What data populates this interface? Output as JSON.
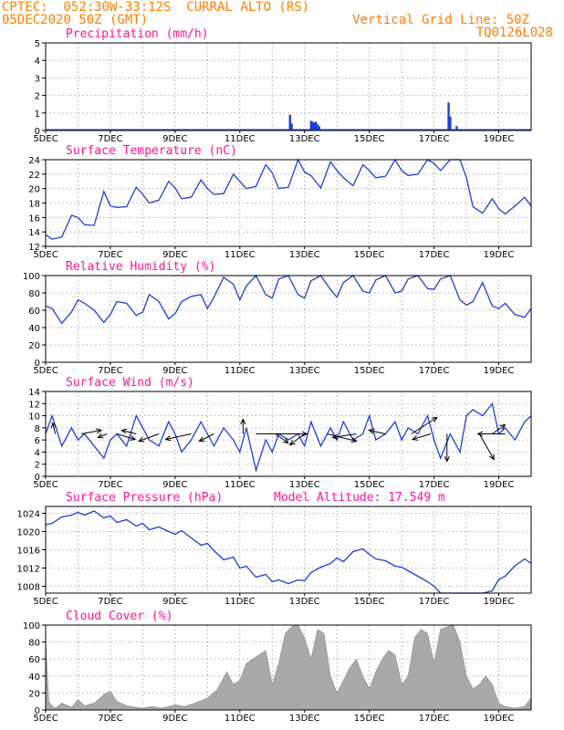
{
  "header": {
    "line1": "CPTEC:  052:30W-33:12S  CURRAL ALTO (RS)",
    "line2": "05DEC2020 50Z (GMT)",
    "grid_note": "Vertical Grid Line: 50Z",
    "code": "TQ0126L028"
  },
  "colors": {
    "header": "#ff7f00",
    "panel_title": "#ff1493",
    "line": "#1f3fd6",
    "precip_bar": "#1f3fd6",
    "cloud_fill": "#a9a9a9",
    "grid": "#9a9a9a"
  },
  "x_axis": {
    "ticks": [
      {
        "day": 5,
        "label": "5DEC"
      },
      {
        "day": 7,
        "label": "7DEC"
      },
      {
        "day": 9,
        "label": "9DEC"
      },
      {
        "day": 11,
        "label": "11DEC"
      },
      {
        "day": 13,
        "label": "13DEC"
      },
      {
        "day": 15,
        "label": "15DEC"
      },
      {
        "day": 17,
        "label": "17DEC"
      },
      {
        "day": 19,
        "label": "19DEC"
      }
    ],
    "range": [
      5,
      20
    ]
  },
  "chart_data": [
    {
      "type": "bar",
      "title": "Precipitation (mm/h)",
      "ylim": [
        0,
        5
      ],
      "yticks": [
        0,
        1,
        2,
        3,
        4,
        5
      ],
      "x": [
        12.55,
        12.6,
        13.2,
        13.25,
        13.3,
        13.35,
        13.4,
        13.45,
        17.45,
        17.5,
        17.7
      ],
      "values": [
        0.9,
        0.4,
        0.55,
        0.5,
        0.45,
        0.5,
        0.35,
        0.25,
        1.6,
        0.8,
        0.25
      ]
    },
    {
      "type": "line",
      "title": "Surface Temperature (nC)",
      "ylim": [
        12,
        24
      ],
      "yticks": [
        12,
        14,
        16,
        18,
        20,
        22,
        24
      ],
      "x": [
        5.0,
        5.2,
        5.5,
        5.8,
        6.0,
        6.2,
        6.5,
        6.8,
        7.0,
        7.2,
        7.5,
        7.8,
        8.0,
        8.2,
        8.5,
        8.8,
        9.0,
        9.2,
        9.5,
        9.8,
        10.0,
        10.2,
        10.5,
        10.8,
        11.0,
        11.2,
        11.5,
        11.8,
        12.0,
        12.2,
        12.5,
        12.8,
        13.0,
        13.2,
        13.5,
        13.8,
        14.0,
        14.2,
        14.5,
        14.8,
        15.0,
        15.2,
        15.5,
        15.8,
        16.0,
        16.2,
        16.5,
        16.8,
        17.0,
        17.2,
        17.5,
        17.8,
        18.0,
        18.2,
        18.5,
        18.8,
        19.0,
        19.2,
        19.5,
        19.8,
        20.0
      ],
      "values": [
        13.6,
        13.0,
        13.3,
        16.3,
        16.0,
        15.0,
        14.9,
        19.6,
        17.6,
        17.4,
        17.5,
        20.2,
        19.2,
        18.0,
        18.4,
        21.0,
        20.1,
        18.6,
        18.8,
        21.2,
        20.0,
        19.2,
        19.3,
        22.0,
        21.0,
        20.0,
        20.3,
        23.3,
        22.2,
        20.0,
        20.2,
        24.0,
        22.3,
        21.8,
        20.1,
        23.7,
        22.5,
        21.5,
        20.4,
        23.3,
        22.5,
        21.5,
        21.7,
        24.0,
        22.5,
        21.8,
        22.0,
        24.0,
        23.5,
        22.5,
        24.0,
        24.0,
        21.5,
        17.5,
        16.6,
        18.6,
        17.2,
        16.5,
        17.6,
        18.8,
        17.6
      ]
    },
    {
      "type": "line",
      "title": "Relative Humidity (%)",
      "ylim": [
        0,
        100
      ],
      "yticks": [
        0,
        20,
        40,
        60,
        80,
        100
      ],
      "x": [
        5.0,
        5.2,
        5.5,
        5.8,
        6.0,
        6.2,
        6.5,
        6.8,
        7.0,
        7.2,
        7.5,
        7.8,
        8.0,
        8.2,
        8.5,
        8.8,
        9.0,
        9.2,
        9.5,
        9.8,
        10.0,
        10.2,
        10.5,
        10.8,
        11.0,
        11.2,
        11.5,
        11.8,
        12.0,
        12.2,
        12.5,
        12.8,
        13.0,
        13.2,
        13.5,
        13.8,
        14.0,
        14.2,
        14.5,
        14.8,
        15.0,
        15.2,
        15.5,
        15.8,
        16.0,
        16.2,
        16.5,
        16.8,
        17.0,
        17.2,
        17.5,
        17.8,
        18.0,
        18.2,
        18.5,
        18.8,
        19.0,
        19.2,
        19.5,
        19.8,
        20.0
      ],
      "values": [
        65,
        62,
        45,
        58,
        72,
        68,
        60,
        46,
        55,
        70,
        68,
        54,
        58,
        78,
        70,
        50,
        56,
        70,
        76,
        78,
        62,
        75,
        98,
        90,
        72,
        88,
        100,
        78,
        74,
        96,
        100,
        78,
        74,
        94,
        100,
        84,
        75,
        92,
        100,
        82,
        80,
        95,
        100,
        80,
        82,
        96,
        100,
        85,
        84,
        96,
        100,
        72,
        66,
        70,
        92,
        65,
        62,
        68,
        55,
        52,
        62
      ]
    },
    {
      "type": "line",
      "title": "Surface Wind (m/s)",
      "ylim": [
        0,
        14
      ],
      "yticks": [
        0,
        2,
        4,
        6,
        8,
        10,
        12,
        14
      ],
      "x": [
        5.0,
        5.2,
        5.5,
        5.8,
        6.0,
        6.2,
        6.5,
        6.8,
        7.0,
        7.2,
        7.5,
        7.8,
        8.0,
        8.2,
        8.5,
        8.8,
        9.0,
        9.2,
        9.5,
        9.8,
        10.0,
        10.2,
        10.5,
        10.8,
        11.0,
        11.2,
        11.5,
        11.8,
        12.0,
        12.2,
        12.5,
        12.8,
        13.0,
        13.2,
        13.5,
        13.8,
        14.0,
        14.2,
        14.5,
        14.8,
        15.0,
        15.2,
        15.5,
        15.8,
        16.0,
        16.2,
        16.5,
        16.8,
        17.0,
        17.2,
        17.5,
        17.8,
        18.0,
        18.2,
        18.5,
        18.8,
        19.0,
        19.2,
        19.5,
        19.8,
        20.0
      ],
      "values": [
        7,
        10,
        5,
        8,
        6,
        7,
        5,
        3,
        6,
        7,
        5,
        10,
        8,
        6,
        5,
        9,
        7,
        4,
        6,
        9,
        7,
        5,
        8,
        6,
        4,
        8,
        1,
        6,
        4,
        7,
        6,
        7,
        5,
        9,
        5,
        8,
        6,
        9,
        6,
        7,
        10,
        6,
        7,
        9,
        6,
        8,
        7,
        10,
        6,
        3,
        7,
        4,
        10,
        11,
        10,
        12,
        7,
        8,
        6,
        9,
        10
      ],
      "wind_vectors": [
        {
          "x": 5.3,
          "dx": -3,
          "dy": 12
        },
        {
          "x": 6.1,
          "dx": 22,
          "dy": 4
        },
        {
          "x": 6.9,
          "dx": -10,
          "dy": -4
        },
        {
          "x": 7.2,
          "dx": 20,
          "dy": -6
        },
        {
          "x": 7.8,
          "dx": -16,
          "dy": 4
        },
        {
          "x": 8.5,
          "dx": -22,
          "dy": -8
        },
        {
          "x": 9.5,
          "dx": -28,
          "dy": -6
        },
        {
          "x": 10.2,
          "dx": -16,
          "dy": -8
        },
        {
          "x": 11.1,
          "dx": 0,
          "dy": 16
        },
        {
          "x": 11.5,
          "dx": 56,
          "dy": 0
        },
        {
          "x": 12.1,
          "dx": 14,
          "dy": -10
        },
        {
          "x": 13.0,
          "dx": -16,
          "dy": -12
        },
        {
          "x": 13.7,
          "dx": 32,
          "dy": -8
        },
        {
          "x": 14.6,
          "dx": -26,
          "dy": -4
        },
        {
          "x": 15.5,
          "dx": -18,
          "dy": 4
        },
        {
          "x": 16.3,
          "dx": 28,
          "dy": 18
        },
        {
          "x": 16.9,
          "dx": -20,
          "dy": -6
        },
        {
          "x": 17.4,
          "dx": 0,
          "dy": -30
        },
        {
          "x": 18.4,
          "dx": 16,
          "dy": -28
        },
        {
          "x": 18.8,
          "dx": 14,
          "dy": 10
        },
        {
          "x": 19.2,
          "dx": -30,
          "dy": 0
        }
      ]
    },
    {
      "type": "line",
      "title": "Surface Pressure (hPa)",
      "annotation": "Model Altitude: 17.549  m",
      "ylim": [
        1006.5,
        1025.5
      ],
      "yticks": [
        1008,
        1012,
        1016,
        1020,
        1024
      ],
      "x": [
        5.0,
        5.2,
        5.5,
        5.8,
        6.0,
        6.2,
        6.5,
        6.8,
        7.0,
        7.2,
        7.5,
        7.8,
        8.0,
        8.2,
        8.5,
        8.8,
        9.0,
        9.2,
        9.5,
        9.8,
        10.0,
        10.2,
        10.5,
        10.8,
        11.0,
        11.2,
        11.5,
        11.8,
        12.0,
        12.2,
        12.5,
        12.8,
        13.0,
        13.2,
        13.5,
        13.8,
        14.0,
        14.2,
        14.5,
        14.8,
        15.0,
        15.2,
        15.5,
        15.8,
        16.0,
        16.2,
        16.5,
        16.8,
        17.0,
        17.2,
        17.5,
        17.8,
        18.0,
        18.2,
        18.5,
        18.8,
        19.0,
        19.2,
        19.5,
        19.8,
        20.0
      ],
      "values": [
        1021.5,
        1021.8,
        1023.2,
        1023.6,
        1024.2,
        1023.6,
        1024.5,
        1023.0,
        1023.4,
        1022.0,
        1022.6,
        1021.2,
        1021.8,
        1020.4,
        1021.0,
        1020.0,
        1019.4,
        1020.2,
        1018.6,
        1017.0,
        1017.4,
        1015.8,
        1013.8,
        1014.4,
        1012.0,
        1012.4,
        1010.0,
        1010.6,
        1009.0,
        1009.4,
        1008.6,
        1009.4,
        1009.2,
        1011.0,
        1012.2,
        1013.0,
        1014.2,
        1013.4,
        1015.6,
        1016.2,
        1015.0,
        1014.0,
        1013.6,
        1012.4,
        1012.2,
        1011.4,
        1010.2,
        1009.0,
        1008.0,
        1006.5,
        1006.5,
        1006.5,
        1006.5,
        1006.5,
        1006.5,
        1007.0,
        1009.5,
        1010.2,
        1012.5,
        1014.0,
        1013.0
      ]
    },
    {
      "type": "area",
      "title": "Cloud Cover (%)",
      "ylim": [
        0,
        100
      ],
      "yticks": [
        0,
        20,
        40,
        60,
        80,
        100
      ],
      "x": [
        5.0,
        5.1,
        5.2,
        5.3,
        5.5,
        5.8,
        6.0,
        6.2,
        6.5,
        6.8,
        7.0,
        7.2,
        7.5,
        7.8,
        8.0,
        8.3,
        8.6,
        9.0,
        9.3,
        9.6,
        10.0,
        10.3,
        10.6,
        10.8,
        11.0,
        11.2,
        11.4,
        11.6,
        11.8,
        12.0,
        12.2,
        12.4,
        12.6,
        12.8,
        13.0,
        13.2,
        13.4,
        13.6,
        13.8,
        14.0,
        14.2,
        14.4,
        14.6,
        14.8,
        15.0,
        15.2,
        15.4,
        15.6,
        15.8,
        16.0,
        16.2,
        16.4,
        16.6,
        16.8,
        17.0,
        17.2,
        17.4,
        17.6,
        17.8,
        18.0,
        18.2,
        18.4,
        18.6,
        18.8,
        19.0,
        19.2,
        19.5,
        19.8,
        20.0
      ],
      "values": [
        82,
        10,
        5,
        2,
        8,
        3,
        12,
        5,
        8,
        18,
        22,
        10,
        5,
        3,
        2,
        4,
        2,
        6,
        4,
        8,
        14,
        24,
        45,
        30,
        35,
        55,
        60,
        65,
        70,
        30,
        55,
        90,
        98,
        100,
        85,
        60,
        95,
        90,
        40,
        20,
        35,
        50,
        60,
        40,
        25,
        45,
        60,
        70,
        65,
        30,
        40,
        85,
        95,
        90,
        55,
        95,
        98,
        100,
        80,
        40,
        25,
        30,
        40,
        30,
        8,
        4,
        2,
        4,
        14
      ]
    }
  ]
}
